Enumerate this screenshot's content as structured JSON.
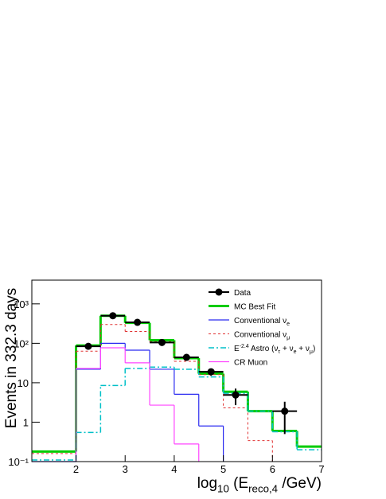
{
  "chart_data": {
    "type": "histogram",
    "y_label": "Events in 332.3 days",
    "x_label": "log_{10} (E_{reco,4} /GeV)",
    "log_y": true,
    "xlim": [
      1.1,
      7
    ],
    "ylim": [
      0.1,
      4000
    ],
    "xticks": [
      2,
      3,
      4,
      5,
      6,
      7
    ],
    "yticks": [
      {
        "value": 0.1,
        "label": "10⁻¹"
      },
      1,
      10,
      {
        "value": 100,
        "label": "10²"
      },
      {
        "value": 1000,
        "label": "10³"
      }
    ],
    "bins": [
      1.1,
      2,
      2.5,
      3,
      3.5,
      4,
      4.5,
      5,
      5.5,
      6,
      6.5,
      7
    ],
    "series": [
      {
        "name": "MC Best Fit",
        "color": "#00cc00",
        "style": "solid",
        "width": 3,
        "values": [
          0.18,
          88,
          500,
          330,
          120,
          42,
          17,
          5.9,
          1.9,
          0.6,
          0.24
        ]
      },
      {
        "name": "Conventional ν_{e}",
        "color": "#2a2af0",
        "style": "solid",
        "width": 1.2,
        "values": [
          0.1,
          22,
          100,
          67,
          22,
          5.1,
          0.8,
          null,
          null,
          null,
          null
        ]
      },
      {
        "name": "Conventional ν_{μ}",
        "color": "#e03030",
        "style": "dashed",
        "width": 1,
        "values": [
          0.16,
          63,
          300,
          200,
          110,
          35,
          16,
          2.3,
          0.34,
          null,
          null
        ]
      },
      {
        "name": "E^{-2.4} Astro (ν_{τ} + ν_{e} + ν_{μ})",
        "color": "#00c0c8",
        "style": "dashdot",
        "width": 1.5,
        "values": [
          0.11,
          0.55,
          8.5,
          23,
          25,
          22,
          14,
          5.4,
          1.9,
          0.57,
          0.2
        ]
      },
      {
        "name": "CR Muon",
        "color": "#ff44ff",
        "style": "solid",
        "width": 1.2,
        "values": [
          null,
          23,
          77,
          32,
          2.7,
          0.28,
          null,
          null,
          null,
          null,
          null
        ]
      }
    ],
    "data_points": {
      "name": "Data",
      "color": "#000000",
      "x": [
        2.25,
        2.75,
        3.25,
        3.75,
        4.25,
        4.75,
        5.25,
        6.25
      ],
      "values": [
        84,
        500,
        340,
        105,
        44,
        19,
        4.9,
        1.9
      ],
      "errors": [
        9,
        22,
        18,
        10,
        7,
        4,
        2.2,
        1.4
      ],
      "xerr": 0.25
    }
  }
}
